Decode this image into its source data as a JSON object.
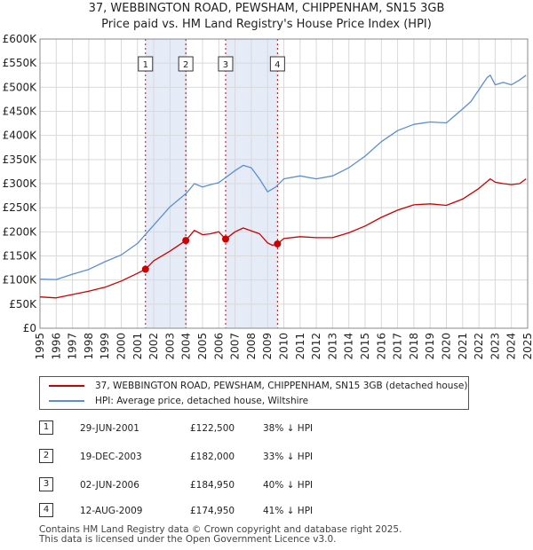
{
  "title": "37, WEBBINGTON ROAD, PEWSHAM, CHIPPENHAM, SN15 3GB",
  "subtitle": "Price paid vs. HM Land Registry's House Price Index (HPI)",
  "colors": {
    "property": "#cc0000",
    "hpi": "#5b8fd0",
    "shade": "#dce6f5",
    "grid": "#d9d9d9"
  },
  "legend": {
    "property_label": "37, WEBBINGTON ROAD, PEWSHAM, CHIPPENHAM, SN15 3GB (detached house)",
    "hpi_label": "HPI: Average price, detached house, Wiltshire"
  },
  "transactions": [
    {
      "num": "1",
      "date": "29-JUN-2001",
      "price": "£122,500",
      "hpi": "38% ↓ HPI"
    },
    {
      "num": "2",
      "date": "19-DEC-2003",
      "price": "£182,000",
      "hpi": "33% ↓ HPI"
    },
    {
      "num": "3",
      "date": "02-JUN-2006",
      "price": "£184,950",
      "hpi": "40% ↓ HPI"
    },
    {
      "num": "4",
      "date": "12-AUG-2009",
      "price": "£174,950",
      "hpi": "41% ↓ HPI"
    }
  ],
  "footer": {
    "line1": "Contains HM Land Registry data © Crown copyright and database right 2025.",
    "line2": "This data is licensed under the Open Government Licence v3.0."
  },
  "chart_data": {
    "type": "line",
    "ylim": [
      0,
      600000
    ],
    "xlim": [
      1995,
      2025
    ],
    "yticks": [
      0,
      50000,
      100000,
      150000,
      200000,
      250000,
      300000,
      350000,
      400000,
      450000,
      500000,
      550000,
      600000
    ],
    "ytick_labels": [
      "£0",
      "£50K",
      "£100K",
      "£150K",
      "£200K",
      "£250K",
      "£300K",
      "£350K",
      "£400K",
      "£450K",
      "£500K",
      "£550K",
      "£600K"
    ],
    "xticks": [
      1995,
      1996,
      1997,
      1998,
      1999,
      2000,
      2001,
      2002,
      2003,
      2004,
      2005,
      2006,
      2007,
      2008,
      2009,
      2010,
      2011,
      2012,
      2013,
      2014,
      2015,
      2016,
      2017,
      2018,
      2019,
      2020,
      2021,
      2022,
      2023,
      2024,
      2025
    ],
    "shaded_ranges": [
      [
        2001.49,
        2003.97
      ],
      [
        2006.42,
        2009.61
      ]
    ],
    "sales": [
      {
        "label": "1",
        "x": 2001.49,
        "y": 122500
      },
      {
        "label": "2",
        "x": 2003.97,
        "y": 182000
      },
      {
        "label": "3",
        "x": 2006.42,
        "y": 184950
      },
      {
        "label": "4",
        "x": 2009.61,
        "y": 174950
      }
    ],
    "series": [
      {
        "name": "37, WEBBINGTON ROAD, PEWSHAM, CHIPPENHAM, SN15 3GB (detached house)",
        "x": [
          1995,
          1996,
          1997,
          1998,
          1999,
          2000,
          2001,
          2001.49,
          2002,
          2003,
          2003.97,
          2004.5,
          2005,
          2005.5,
          2006,
          2006.42,
          2007,
          2007.5,
          2008,
          2008.5,
          2009,
          2009.3,
          2009.61,
          2010,
          2011,
          2012,
          2013,
          2014,
          2015,
          2016,
          2017,
          2018,
          2019,
          2020,
          2021,
          2022,
          2022.7,
          2023,
          2023.5,
          2024,
          2024.5,
          2024.9
        ],
        "values": [
          65000,
          63000,
          70000,
          77000,
          85000,
          98000,
          114000,
          122500,
          140000,
          160000,
          182000,
          203000,
          194000,
          196000,
          200000,
          184950,
          200000,
          208000,
          202000,
          196000,
          177000,
          172000,
          174950,
          186000,
          190000,
          188000,
          188000,
          198000,
          212000,
          230000,
          245000,
          256000,
          258000,
          255000,
          268000,
          290000,
          310000,
          303000,
          300000,
          298000,
          300000,
          310000
        ]
      },
      {
        "name": "HPI: Average price, detached house, Wiltshire",
        "x": [
          1995,
          1996,
          1997,
          1998,
          1999,
          2000,
          2001,
          2002,
          2003,
          2004,
          2004.5,
          2005,
          2005.5,
          2006,
          2007,
          2007.5,
          2008,
          2008.5,
          2009,
          2009.5,
          2010,
          2011,
          2012,
          2013,
          2014,
          2015,
          2016,
          2017,
          2018,
          2019,
          2020,
          2021,
          2021.5,
          2022,
          2022.5,
          2022.7,
          2023,
          2023.5,
          2024,
          2024.5,
          2024.9
        ],
        "values": [
          102000,
          101000,
          112000,
          122000,
          138000,
          152000,
          176000,
          214000,
          252000,
          280000,
          300000,
          293000,
          298000,
          302000,
          327000,
          338000,
          333000,
          310000,
          283000,
          293000,
          310000,
          316000,
          310000,
          316000,
          333000,
          357000,
          387000,
          410000,
          423000,
          428000,
          426000,
          455000,
          470000,
          495000,
          520000,
          525000,
          505000,
          510000,
          505000,
          515000,
          525000
        ]
      }
    ]
  }
}
